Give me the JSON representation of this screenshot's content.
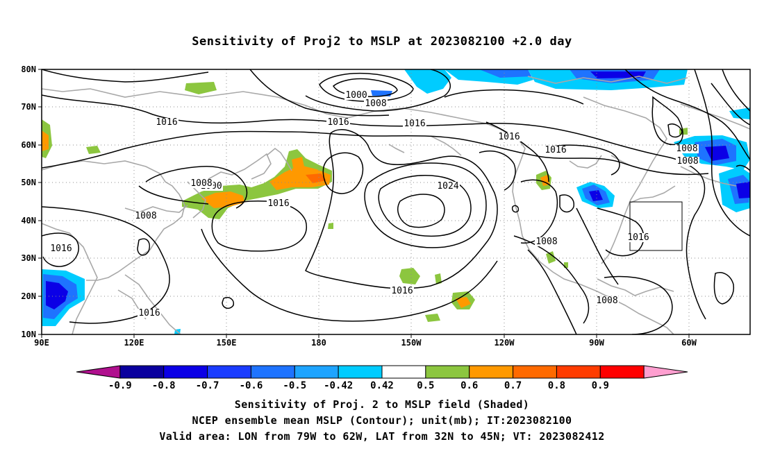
{
  "title": "Sensitivity of Proj2 to MSLP at 2023082100 +2.0 day",
  "lat_labels": [
    "80N",
    "70N",
    "60N",
    "50N",
    "40N",
    "30N",
    "20N",
    "10N"
  ],
  "lon_labels": [
    "90E",
    "120E",
    "150E",
    "180",
    "150W",
    "120W",
    "90W",
    "60W"
  ],
  "contour_labels": [
    "1000",
    "1008",
    "1016",
    "1016",
    "1016",
    "1016",
    "1016",
    "1024",
    "1008",
    "1008",
    "1016",
    "1016",
    "1008",
    "1016",
    "1016",
    "1000",
    "1008",
    "1016",
    "1008",
    "1008"
  ],
  "colorbar": {
    "labels": [
      "-0.9",
      "-0.8",
      "-0.7",
      "-0.6",
      "-0.5",
      "-0.42",
      "0.42",
      "0.5",
      "0.6",
      "0.7",
      "0.8",
      "0.9"
    ],
    "colors": [
      "#b0108e",
      "#0a009e",
      "#0b00e6",
      "#1a3cff",
      "#1e73ff",
      "#1ea4ff",
      "#00ccff",
      "#ffffff",
      "#8cc63f",
      "#ff9900",
      "#ff6a00",
      "#ff3c00",
      "#ff0000",
      "#ff9fd0"
    ]
  },
  "captions": [
    "Sensitivity of Proj. 2 to MSLP field (Shaded)",
    "NCEP ensemble mean MSLP (Contour); unit(mb); IT:2023082100",
    "Valid area: LON from 79W to 62W, LAT from 32N to 45N; VT: 2023082412"
  ],
  "colors": {
    "contour": "#000000",
    "coast": "#a8a8a8",
    "grid": "#8c8c8c",
    "green": "#8cc63f",
    "orange": "#ff9900",
    "lightblue": "#00ccff",
    "blue": "#1e73ff",
    "deepblue": "#0b00e6"
  }
}
